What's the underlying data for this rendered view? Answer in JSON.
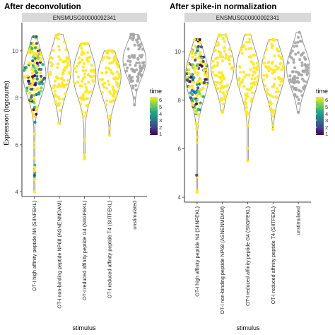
{
  "chart_data": [
    {
      "type": "violin-beeswarm",
      "title": "After deconvolution",
      "strip_label": "ENSMUSG00000092341",
      "xlabel": "stimulus",
      "ylabel": "Expression (logcounts)",
      "ylim": [
        3.8,
        11.2
      ],
      "yticks": [
        4,
        6,
        8,
        10
      ],
      "categories": [
        "OT-I high affinity peptide N4 (SIINFEKL)",
        "OT-I non-binding peptide NP68 (ASNENMDAM)",
        "OT-I reduced affinity peptide G4 (SIIGFEKL)",
        "OT-I reduced affinity peptide T4 (SIITFEKL)",
        "unstimulated"
      ],
      "groups": [
        {
          "min": 4.0,
          "max": 10.6,
          "median": 9.0,
          "dense_low": 8.2,
          "dense_high": 9.8,
          "colored": true
        },
        {
          "min": 6.9,
          "max": 10.7,
          "median": 9.2,
          "dense_low": 8.3,
          "dense_high": 10.0,
          "colored": false
        },
        {
          "min": 5.4,
          "max": 10.3,
          "median": 9.0,
          "dense_low": 8.2,
          "dense_high": 9.8,
          "colored": false
        },
        {
          "min": 6.4,
          "max": 10.0,
          "median": 8.9,
          "dense_low": 8.1,
          "dense_high": 9.6,
          "colored": false
        },
        {
          "min": 7.7,
          "max": 10.7,
          "median": 9.6,
          "dense_low": 8.9,
          "dense_high": 10.2,
          "colored": false
        }
      ]
    },
    {
      "type": "violin-beeswarm",
      "title": "After spike-in normalization",
      "strip_label": "ENSMUSG00000092341",
      "xlabel": "stimulus",
      "ylabel": "",
      "ylim": [
        3.8,
        11.2
      ],
      "yticks": [
        4,
        6,
        8,
        10
      ],
      "categories": [
        "OT-I high affinity peptide N4 (SIINFEKL)",
        "OT-I non-binding peptide NP68 (ASNENMDAM)",
        "OT-I reduced affinity peptide G4 (SIIGFEKL)",
        "OT-I reduced affinity peptide T4 (SIITFEKL)",
        "unstimulated"
      ],
      "groups": [
        {
          "min": 4.2,
          "max": 10.5,
          "median": 9.0,
          "dense_low": 8.2,
          "dense_high": 9.8,
          "colored": true
        },
        {
          "min": 7.5,
          "max": 10.7,
          "median": 9.4,
          "dense_low": 8.6,
          "dense_high": 10.1,
          "colored": false
        },
        {
          "min": 5.5,
          "max": 10.7,
          "median": 9.2,
          "dense_low": 8.4,
          "dense_high": 10.0,
          "colored": false
        },
        {
          "min": 6.8,
          "max": 10.5,
          "median": 9.2,
          "dense_low": 8.3,
          "dense_high": 9.9,
          "colored": false
        },
        {
          "min": 7.5,
          "max": 10.8,
          "median": 9.3,
          "dense_low": 8.6,
          "dense_high": 10.0,
          "colored": false
        }
      ]
    }
  ],
  "legend": {
    "title": "time",
    "ticks": [
      "6",
      "5",
      "4",
      "3",
      "2",
      "1"
    ],
    "colors": [
      "#fde725",
      "#7ad151",
      "#22a884",
      "#2a788e",
      "#414487",
      "#440154"
    ]
  },
  "colors": {
    "strip_bg": "#d9d9d9",
    "unstimulated_points": "#a6a6a6",
    "stimulated_points": "#fde725",
    "violin_stroke": "#8c8c8c"
  }
}
